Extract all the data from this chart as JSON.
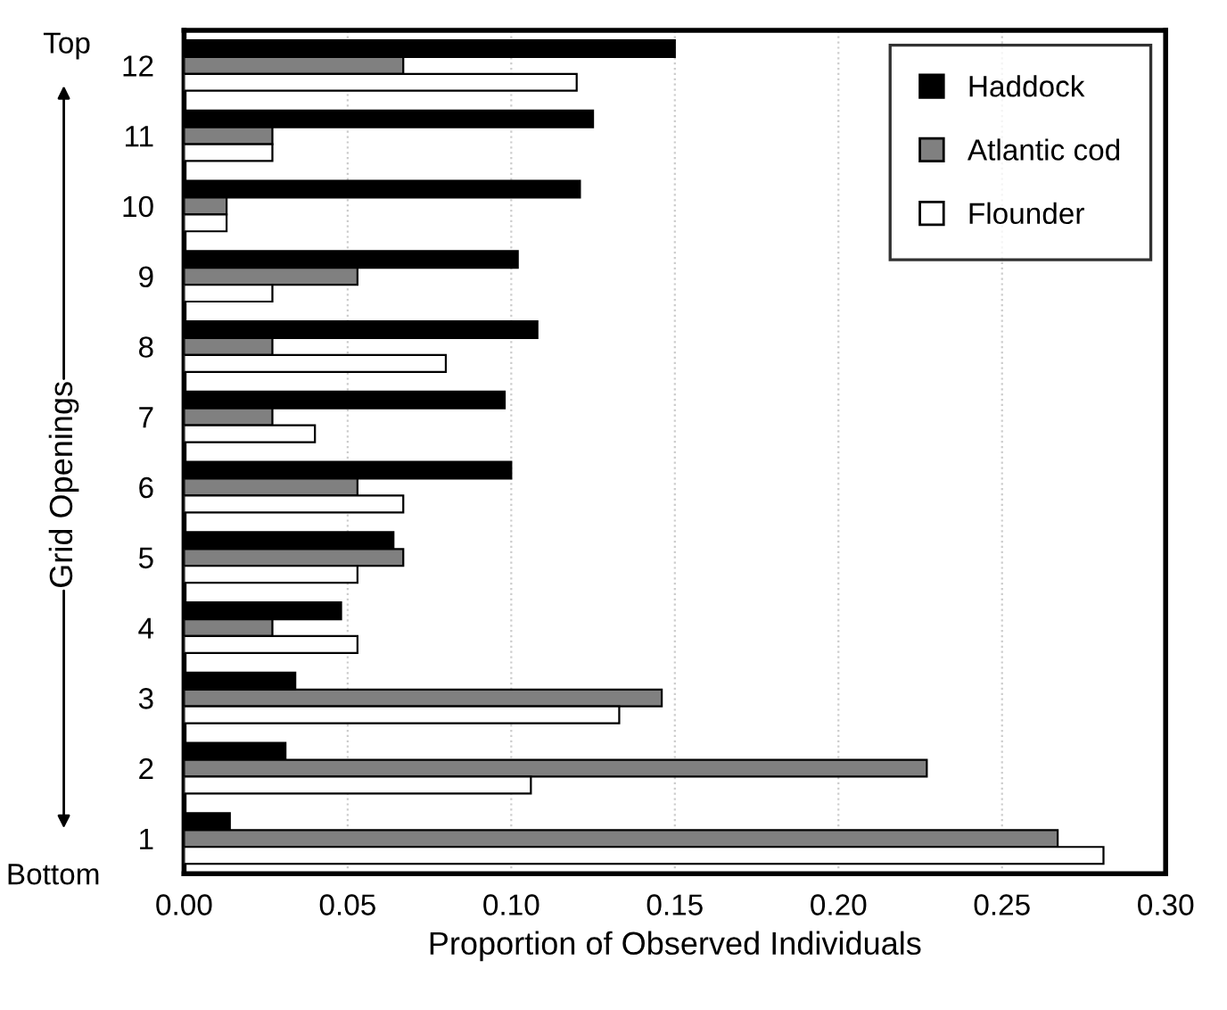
{
  "chart_data": {
    "type": "bar",
    "orientation": "horizontal",
    "xlabel": "Proportion of Observed Individuals",
    "ylabel": "Grid Openings",
    "categories": [
      "12",
      "11",
      "10",
      "9",
      "8",
      "7",
      "6",
      "5",
      "4",
      "3",
      "2",
      "1"
    ],
    "series": [
      {
        "name": "Haddock",
        "color": "#000000",
        "values": [
          0.15,
          0.125,
          0.121,
          0.102,
          0.108,
          0.098,
          0.1,
          0.064,
          0.048,
          0.034,
          0.031,
          0.014
        ]
      },
      {
        "name": "Atlantic cod",
        "color": "#808080",
        "values": [
          0.067,
          0.027,
          0.013,
          0.053,
          0.027,
          0.027,
          0.053,
          0.067,
          0.027,
          0.146,
          0.227,
          0.267
        ]
      },
      {
        "name": "Flounder",
        "color": "#ffffff",
        "values": [
          0.12,
          0.027,
          0.013,
          0.027,
          0.08,
          0.04,
          0.067,
          0.053,
          0.053,
          0.133,
          0.106,
          0.281
        ]
      }
    ],
    "xlim": [
      0,
      0.3
    ],
    "xticks": [
      {
        "value": 0,
        "label": "0.00"
      },
      {
        "value": 0.05,
        "label": "0.05"
      },
      {
        "value": 0.1,
        "label": "0.10"
      },
      {
        "value": 0.15,
        "label": "0.15"
      },
      {
        "value": 0.2,
        "label": "0.20"
      },
      {
        "value": 0.25,
        "label": "0.25"
      },
      {
        "value": 0.3,
        "label": "0.30"
      }
    ],
    "annotations": [
      "Top",
      "Bottom"
    ],
    "grid": "x",
    "legend": "top right"
  }
}
